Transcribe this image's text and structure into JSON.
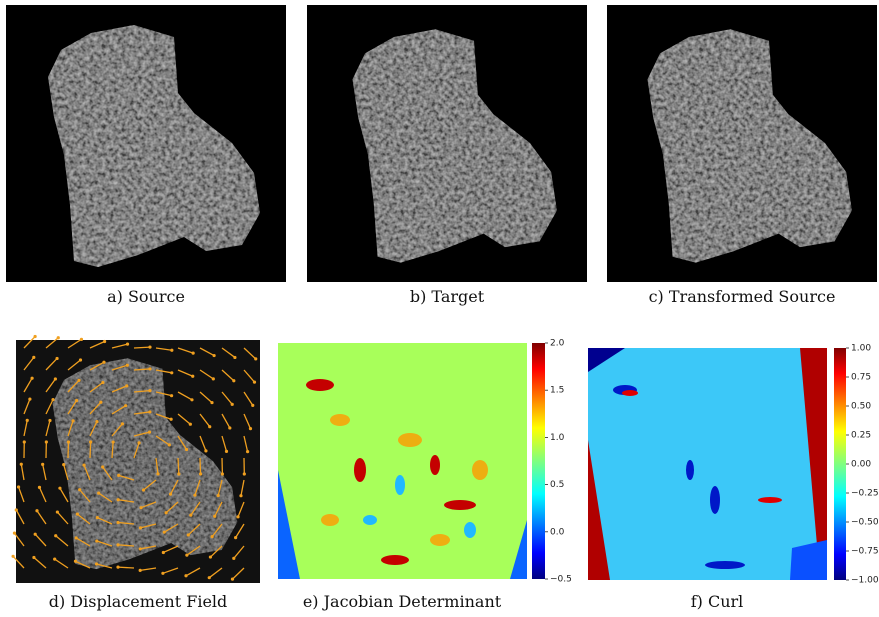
{
  "panels": [
    {
      "caption": "a) Source"
    },
    {
      "caption": "b) Target"
    },
    {
      "caption": "c) Transformed Source"
    },
    {
      "caption": "d) Displacement Field"
    },
    {
      "caption": "e) Jacobian Determinant",
      "colorbar": {
        "lim": [
          -0.5,
          2.0
        ],
        "ticks": [
          {
            "value": 2,
            "label": "2.0"
          },
          {
            "value": 1.5,
            "label": "1.5"
          },
          {
            "value": 1,
            "label": "1.0"
          },
          {
            "value": 0.5,
            "label": "0.5"
          },
          {
            "value": 0,
            "label": "0.0"
          },
          {
            "value": -0.5,
            "label": "−0.5"
          }
        ]
      }
    },
    {
      "caption": "f) Curl",
      "colorbar": {
        "lim": [
          -1.0,
          1.0
        ],
        "ticks": [
          {
            "value": 1,
            "label": "1.00"
          },
          {
            "value": 0.75,
            "label": "0.75"
          },
          {
            "value": 0.5,
            "label": "0.50"
          },
          {
            "value": 0.25,
            "label": "0.25"
          },
          {
            "value": 0,
            "label": "0.00"
          },
          {
            "value": -0.25,
            "label": "−0.25"
          },
          {
            "value": -0.5,
            "label": "−0.50"
          },
          {
            "value": -0.75,
            "label": "−0.75"
          },
          {
            "value": -1,
            "label": "−1.00"
          }
        ]
      }
    }
  ]
}
